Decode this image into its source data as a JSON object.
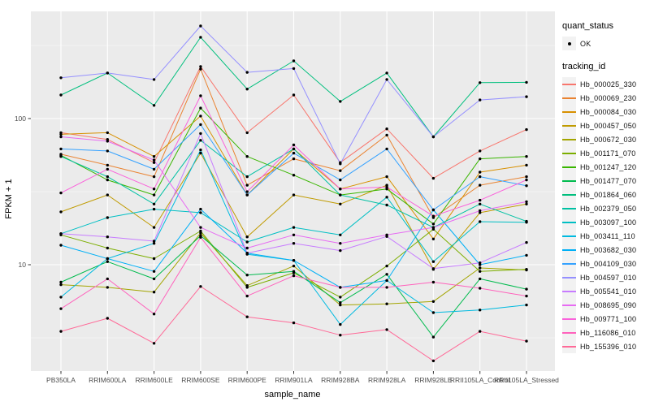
{
  "legend": {
    "quant_status_title": "quant_status",
    "quant_status_ok_label": "OK",
    "tracking_id_title": "tracking_id"
  },
  "chart_data": {
    "type": "line",
    "title": "",
    "xlabel": "sample_name",
    "ylabel": "FPKM + 1",
    "yscale": "log10",
    "ylim": [
      1.9,
      545
    ],
    "yticks": [
      {
        "value": 10,
        "label": "10"
      },
      {
        "value": 100,
        "label": "100"
      }
    ],
    "minor_yticks": [
      3.162,
      31.62,
      316.2
    ],
    "grid": "on",
    "legend_position": "right",
    "point_marker": "black-dot",
    "categories": [
      "PB350LA",
      "RRIM600LA",
      "RRIM600LE",
      "RRIM600SE",
      "RRIM600PE",
      "RRIM901LA",
      "RRIM928BA",
      "RRIM928LA",
      "RRIM928LE",
      "RRII105LA_Control",
      "RRII105LA_Stressed"
    ],
    "series": [
      {
        "name": "Hb_000025_330",
        "color": "#F8766D",
        "quant_status": "OK",
        "values": [
          80,
          72,
          50,
          227,
          80,
          145,
          50,
          85,
          39,
          60,
          84
        ]
      },
      {
        "name": "Hb_000069_230",
        "color": "#EA8331",
        "quant_status": "OK",
        "values": [
          57,
          48,
          40,
          218,
          35,
          53,
          44,
          77,
          21,
          35,
          40
        ]
      },
      {
        "name": "Hb_000084_030",
        "color": "#D89000",
        "quant_status": "OK",
        "values": [
          78,
          80,
          55,
          104,
          30,
          62,
          33,
          40,
          15,
          43,
          48
        ]
      },
      {
        "name": "Hb_000457_050",
        "color": "#C09B00",
        "quant_status": "OK",
        "values": [
          23,
          30,
          18,
          58,
          15.5,
          30,
          26,
          35,
          9.3,
          22.7,
          26
        ]
      },
      {
        "name": "Hb_000672_030",
        "color": "#A3A500",
        "quant_status": "OK",
        "values": [
          7.3,
          7.0,
          6.5,
          16.5,
          7.2,
          9.8,
          5.3,
          5.4,
          5.6,
          9.5,
          9.2
        ]
      },
      {
        "name": "Hb_001171_070",
        "color": "#7CAE00",
        "quant_status": "OK",
        "values": [
          16,
          13,
          11,
          17,
          7.0,
          8.8,
          6.0,
          9.8,
          17.5,
          9.0,
          9.3
        ]
      },
      {
        "name": "Hb_001247_120",
        "color": "#39B600",
        "quant_status": "OK",
        "values": [
          56,
          38,
          30,
          118,
          55,
          41,
          30,
          33,
          19,
          53,
          55
        ]
      },
      {
        "name": "Hb_001477_070",
        "color": "#00BB4E",
        "quant_status": "OK",
        "values": [
          7.6,
          10.5,
          8.0,
          15.8,
          8.5,
          9.0,
          5.5,
          8.6,
          3.2,
          8.0,
          6.8
        ]
      },
      {
        "name": "Hb_001864_060",
        "color": "#00BF7D",
        "quant_status": "OK",
        "values": [
          145,
          205,
          123,
          360,
          159,
          248,
          131,
          205,
          75,
          176,
          177
        ]
      },
      {
        "name": "Hb_002379_050",
        "color": "#00C1A3",
        "quant_status": "OK",
        "values": [
          55,
          40,
          26,
          71,
          40,
          62,
          30,
          25.6,
          18,
          26,
          19.8
        ]
      },
      {
        "name": "Hb_003097_100",
        "color": "#00BFC4",
        "quant_status": "OK",
        "values": [
          16.3,
          21,
          24,
          22.7,
          14.3,
          18,
          16,
          29,
          10.5,
          19.7,
          19.5
        ]
      },
      {
        "name": "Hb_003411_110",
        "color": "#00BAE0",
        "quant_status": "OK",
        "values": [
          6.0,
          11,
          14,
          61,
          11.8,
          10.7,
          3.9,
          7.8,
          4.7,
          4.9,
          5.3
        ]
      },
      {
        "name": "Hb_003682_030",
        "color": "#00B0F6",
        "quant_status": "OK",
        "values": [
          13.6,
          11,
          9.0,
          24,
          12,
          10.7,
          7.0,
          7.8,
          23.7,
          10,
          11.6
        ]
      },
      {
        "name": "Hb_004109_030",
        "color": "#35A2FF",
        "quant_status": "OK",
        "values": [
          62,
          60,
          45,
          91,
          30,
          58,
          38,
          62,
          23.7,
          40,
          34.7
        ]
      },
      {
        "name": "Hb_004597_010",
        "color": "#9590FF",
        "quant_status": "OK",
        "values": [
          190,
          205,
          185,
          430,
          207,
          220,
          49,
          185,
          75,
          134,
          141
        ]
      },
      {
        "name": "Hb_005541_010",
        "color": "#C77CFF",
        "quant_status": "OK",
        "values": [
          16.3,
          15.5,
          14.5,
          79,
          12,
          14,
          12.5,
          15.6,
          9.4,
          10.3,
          14.2
        ]
      },
      {
        "name": "Hb_008695_090",
        "color": "#E76BF3",
        "quant_status": "OK",
        "values": [
          75,
          70,
          52,
          18,
          13,
          16,
          14,
          16,
          18,
          23.4,
          27
        ]
      },
      {
        "name": "Hb_009771_100",
        "color": "#FA62DB",
        "quant_status": "OK",
        "values": [
          31,
          45,
          33,
          143,
          31.6,
          66,
          33,
          34,
          21.5,
          27.6,
          38
        ]
      },
      {
        "name": "Hb_116086_010",
        "color": "#FF62BC",
        "quant_status": "OK",
        "values": [
          5.0,
          8.0,
          4.6,
          15.4,
          6.1,
          8.4,
          7.0,
          7.0,
          7.6,
          6.9,
          6.1
        ]
      },
      {
        "name": "Hb_155396_010",
        "color": "#FF6A98",
        "quant_status": "OK",
        "values": [
          3.5,
          4.3,
          2.9,
          7.1,
          4.4,
          4.0,
          3.3,
          3.6,
          2.2,
          3.5,
          3.0
        ]
      }
    ],
    "style": {
      "panel_bg": "#EBEBEB",
      "grid_color": "#FFFFFF",
      "tick_color": "#333333",
      "tick_label_color": "#4D4D4D",
      "point_color": "#000000"
    }
  }
}
